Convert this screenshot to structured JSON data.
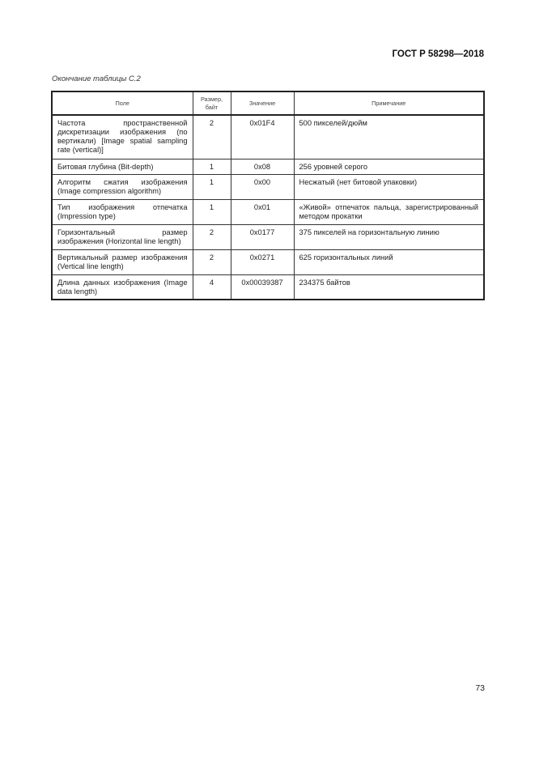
{
  "header": {
    "doc_id": "ГОСТ Р 58298—2018"
  },
  "caption": "Окончание таблицы С.2",
  "table": {
    "columns": [
      "Поле",
      "Размер, байт",
      "Значение",
      "Примечание"
    ],
    "rows": [
      {
        "field": "Частота пространственной дискретизации изображения (по вертикали) [Image spatial sampling rate (vertical)]",
        "size": "2",
        "value": "0x01F4",
        "note": "500 пикселей/дюйм"
      },
      {
        "field": "Битовая глубина (Bit-depth)",
        "size": "1",
        "value": "0x08",
        "note": "256 уровней серого"
      },
      {
        "field": "Алгоритм сжатия изображения (Image compression algorithm)",
        "size": "1",
        "value": "0x00",
        "note": "Несжатый (нет битовой упаковки)"
      },
      {
        "field": "Тип изображения отпечатка (Impression type)",
        "size": "1",
        "value": "0x01",
        "note": "«Живой» отпечаток пальца, зарегистрированный методом прокатки"
      },
      {
        "field": "Горизонтальный размер изображения (Horizontal line length)",
        "size": "2",
        "value": "0x0177",
        "note": "375 пикселей на горизонтальную линию"
      },
      {
        "field": "Вертикальный размер изображения (Vertical line length)",
        "size": "2",
        "value": "0x0271",
        "note": "625 горизонтальных линий"
      },
      {
        "field": "Длина данных изображения (Image data length)",
        "size": "4",
        "value": "0x00039387",
        "note": "234375 байтов"
      }
    ]
  },
  "footer": {
    "page_number": "73"
  }
}
